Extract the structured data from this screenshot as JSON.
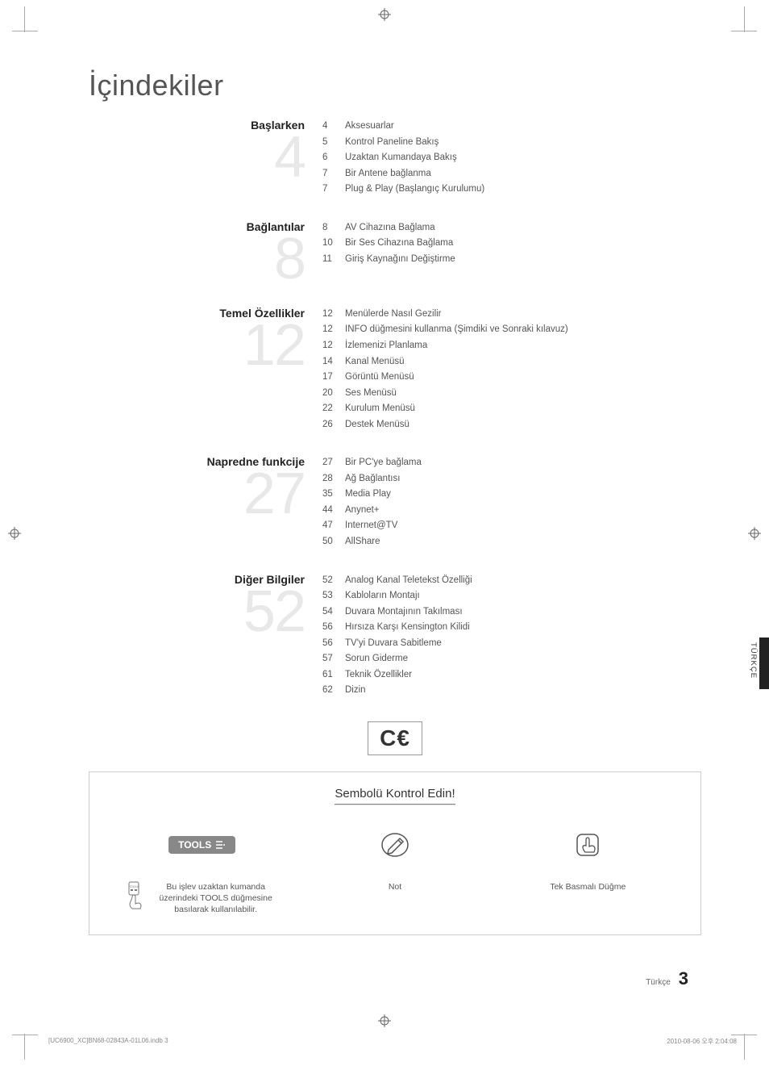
{
  "title": "İçindekiler",
  "sections": [
    {
      "title": "Başlarken",
      "number": "4",
      "items": [
        {
          "page": "4",
          "label": "Aksesuarlar"
        },
        {
          "page": "5",
          "label": "Kontrol Paneline Bakış"
        },
        {
          "page": "6",
          "label": "Uzaktan Kumandaya Bakış"
        },
        {
          "page": "7",
          "label": "Bir Antene bağlanma"
        },
        {
          "page": "7",
          "label": "Plug & Play (Başlangıç Kurulumu)"
        }
      ]
    },
    {
      "title": "Bağlantılar",
      "number": "8",
      "items": [
        {
          "page": "8",
          "label": "AV Cihazına Bağlama"
        },
        {
          "page": "10",
          "label": "Bir Ses Cihazına Bağlama"
        },
        {
          "page": "11",
          "label": "Giriş Kaynağını Değiştirme"
        }
      ]
    },
    {
      "title": "Temel Özellikler",
      "number": "12",
      "items": [
        {
          "page": "12",
          "label": "Menülerde Nasıl Gezilir"
        },
        {
          "page": "12",
          "label": "INFO düğmesini kullanma (Şimdiki ve Sonraki kılavuz)"
        },
        {
          "page": "12",
          "label": "İzlemenizi Planlama"
        },
        {
          "page": "14",
          "label": "Kanal Menüsü"
        },
        {
          "page": "17",
          "label": "Görüntü Menüsü"
        },
        {
          "page": "20",
          "label": "Ses Menüsü"
        },
        {
          "page": "22",
          "label": "Kurulum Menüsü"
        },
        {
          "page": "26",
          "label": "Destek Menüsü"
        }
      ]
    },
    {
      "title": "Napredne funkcije",
      "number": "27",
      "items": [
        {
          "page": "27",
          "label": "Bir PC'ye bağlama"
        },
        {
          "page": "28",
          "label": "Ağ Bağlantısı"
        },
        {
          "page": "35",
          "label": "Media Play"
        },
        {
          "page": "44",
          "label": "Anynet+"
        },
        {
          "page": "47",
          "label": "Internet@TV"
        },
        {
          "page": "50",
          "label": "AllShare"
        }
      ]
    },
    {
      "title": "Diğer Bilgiler",
      "number": "52",
      "items": [
        {
          "page": "52",
          "label": "Analog Kanal Teletekst Özelliği"
        },
        {
          "page": "53",
          "label": "Kabloların Montajı"
        },
        {
          "page": "54",
          "label": "Duvara Montajının Takılması"
        },
        {
          "page": "56",
          "label": "Hırsıza Karşı Kensington Kilidi"
        },
        {
          "page": "56",
          "label": "TV'yi Duvara Sabitleme"
        },
        {
          "page": "57",
          "label": "Sorun Giderme"
        },
        {
          "page": "61",
          "label": "Teknik Özellikler"
        },
        {
          "page": "62",
          "label": "Dizin"
        }
      ]
    }
  ],
  "symbol_box": {
    "title": "Sembolü Kontrol Edin!",
    "cols": [
      {
        "badge": "TOOLS",
        "label": "Bu işlev uzaktan kumanda üzerindeki TOOLS düğmesine basılarak kullanılabilir."
      },
      {
        "label": "Not"
      },
      {
        "label": "Tek Basmalı Düğme"
      }
    ]
  },
  "side_tab": "TÜRKÇE",
  "footer": {
    "lang": "Türkçe",
    "page": "3",
    "file": "[UC6900_XC]BN68-02843A-01L06.indb   3",
    "timestamp": "2010-08-06   오후 2:04:08"
  },
  "colors": {
    "text": "#555555",
    "heading": "#222222",
    "big_number": "#e8e8e8",
    "border": "#cccccc"
  }
}
